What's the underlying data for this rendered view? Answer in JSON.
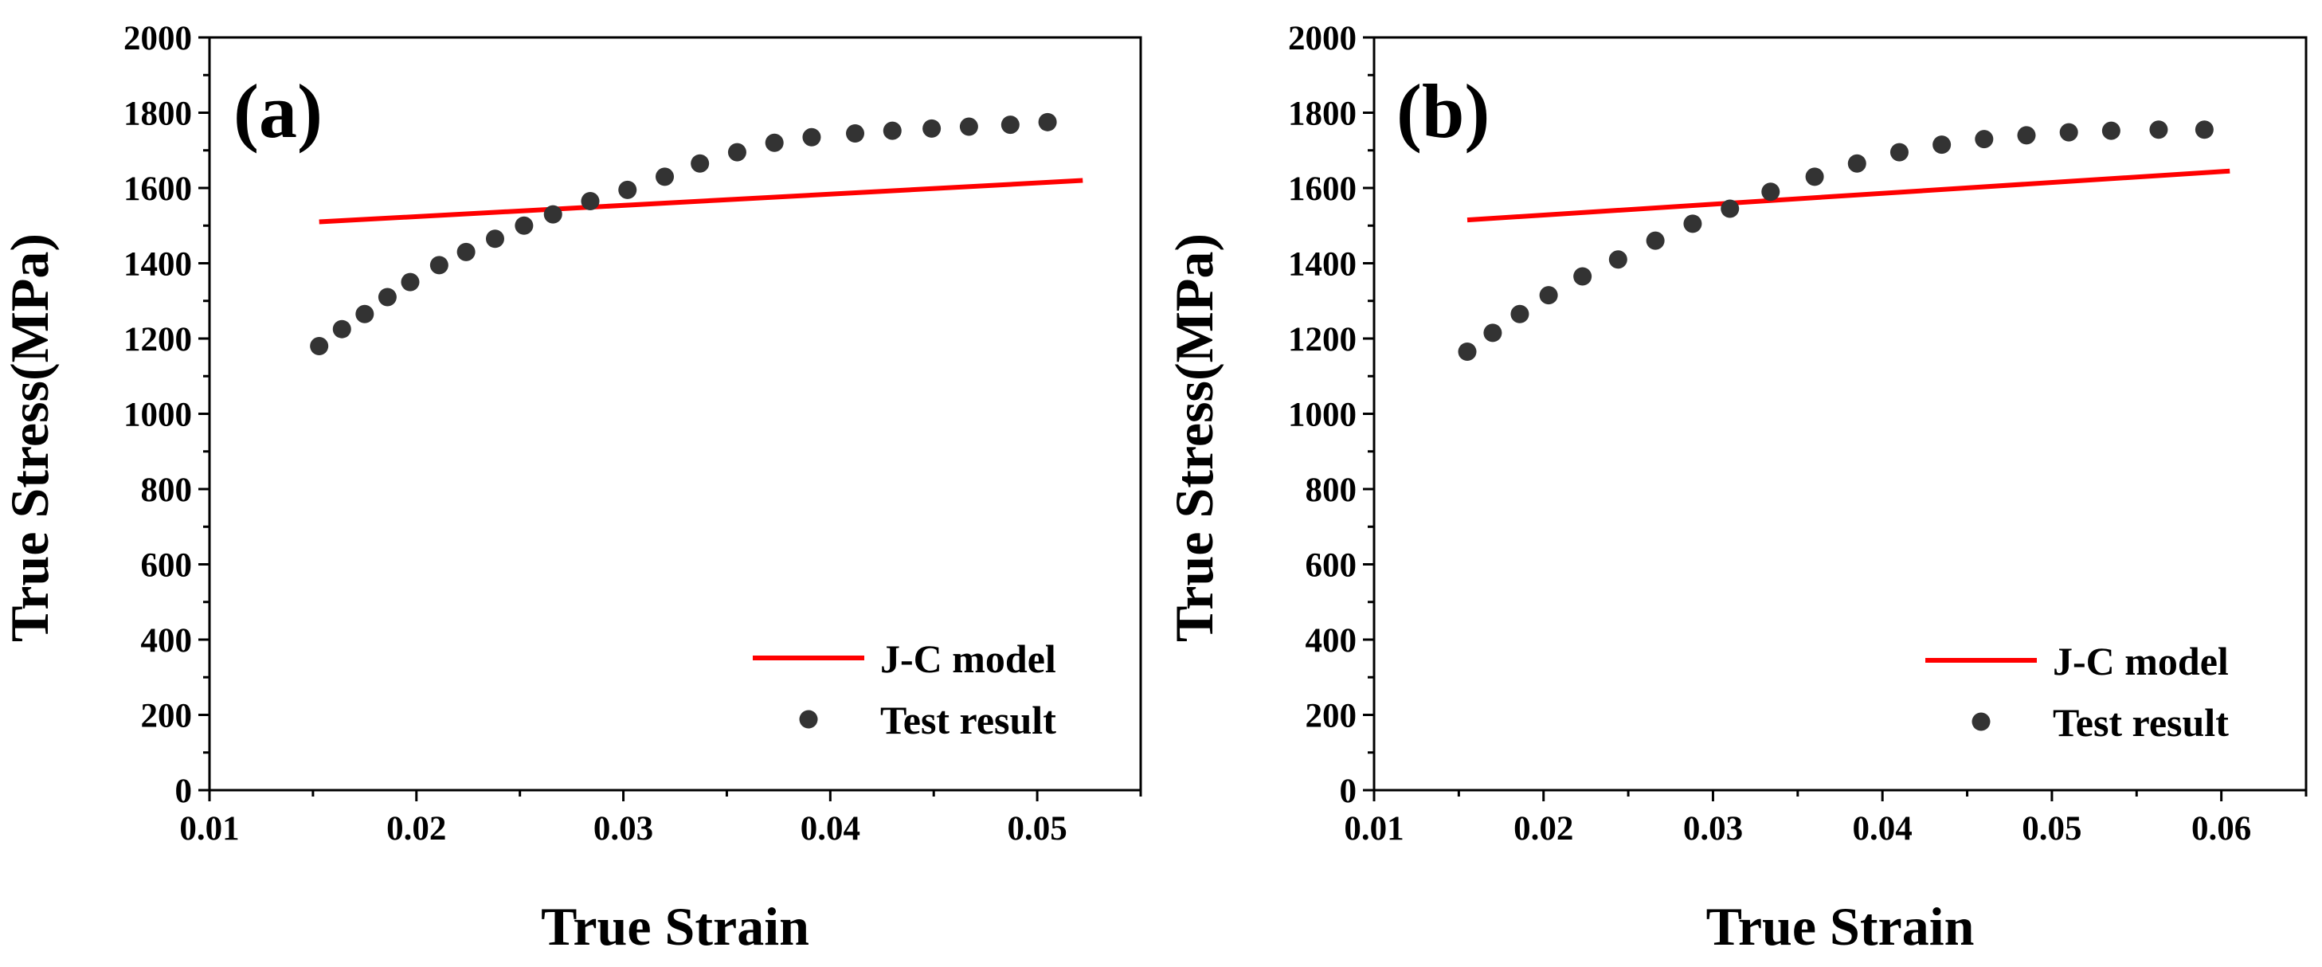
{
  "colors": {
    "model_line": "#ff0000",
    "test_points": "#333333",
    "axes": "#000000",
    "background": "#ffffff"
  },
  "chart_data": [
    {
      "type": "line",
      "panel_label": "(a)",
      "xlabel": "True Strain",
      "ylabel": "True Stress(MPa)",
      "xlim": [
        0.01,
        0.055
      ],
      "ylim": [
        0,
        2000
      ],
      "xticks": [
        "0.01",
        "0.02",
        "0.03",
        "0.04",
        "0.05"
      ],
      "yticks": [
        "0",
        "200",
        "400",
        "600",
        "800",
        "1000",
        "1200",
        "1400",
        "1600",
        "1800",
        "2000"
      ],
      "legend_position": "bottom-right",
      "series": [
        {
          "name": "J-C model",
          "kind": "line",
          "x": [
            0.0153,
            0.0522
          ],
          "y": [
            1510,
            1620
          ]
        },
        {
          "name": "Test result",
          "kind": "scatter",
          "x": [
            0.0153,
            0.0164,
            0.0175,
            0.0186,
            0.0197,
            0.0211,
            0.0224,
            0.0238,
            0.0252,
            0.0266,
            0.0284,
            0.0302,
            0.032,
            0.0337,
            0.0355,
            0.0373,
            0.0391,
            0.0412,
            0.043,
            0.0449,
            0.0467,
            0.0487,
            0.0505
          ],
          "y": [
            1180,
            1225,
            1265,
            1310,
            1350,
            1395,
            1430,
            1465,
            1500,
            1530,
            1565,
            1595,
            1630,
            1665,
            1695,
            1720,
            1735,
            1745,
            1752,
            1758,
            1763,
            1768,
            1775
          ]
        }
      ]
    },
    {
      "type": "line",
      "panel_label": "(b)",
      "xlabel": "True Strain",
      "ylabel": "True Stress(MPa)",
      "xlim": [
        0.01,
        0.065
      ],
      "ylim": [
        0,
        2000
      ],
      "xticks": [
        "0.01",
        "0.02",
        "0.03",
        "0.04",
        "0.05",
        "0.06"
      ],
      "yticks": [
        "0",
        "200",
        "400",
        "600",
        "800",
        "1000",
        "1200",
        "1400",
        "1600",
        "1800",
        "2000"
      ],
      "legend_position": "bottom-right",
      "series": [
        {
          "name": "J-C model",
          "kind": "line",
          "x": [
            0.0155,
            0.0605
          ],
          "y": [
            1515,
            1645
          ]
        },
        {
          "name": "Test result",
          "kind": "scatter",
          "x": [
            0.0155,
            0.017,
            0.0186,
            0.0203,
            0.0223,
            0.0244,
            0.0266,
            0.0288,
            0.031,
            0.0334,
            0.036,
            0.0385,
            0.041,
            0.0435,
            0.046,
            0.0485,
            0.051,
            0.0535,
            0.0563,
            0.059
          ],
          "y": [
            1165,
            1215,
            1265,
            1315,
            1365,
            1410,
            1460,
            1505,
            1545,
            1590,
            1630,
            1665,
            1695,
            1715,
            1730,
            1740,
            1748,
            1752,
            1755,
            1755
          ]
        }
      ]
    }
  ]
}
